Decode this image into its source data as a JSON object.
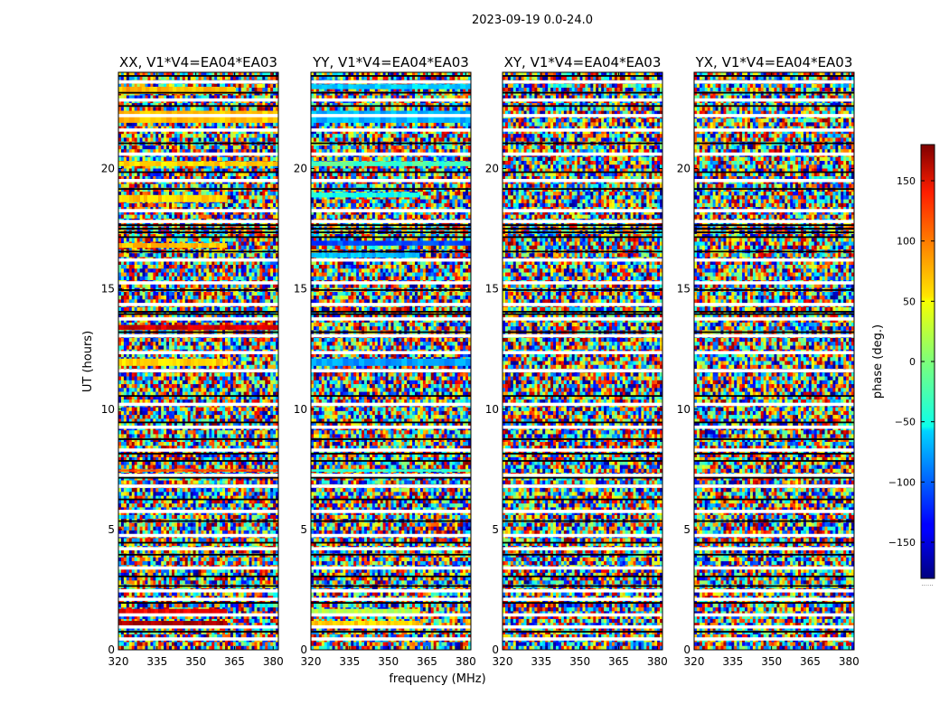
{
  "figure": {
    "suptitle": "2023-09-19 0.0-24.0",
    "xlabel": "frequency (MHz)",
    "ylabel": "UT (hours)",
    "colorbar_label": "phase (deg.)",
    "colorbar_dots": "......"
  },
  "chart_data": {
    "type": "heatmap",
    "title": "2023-09-19 0.0-24.0",
    "xlabel": "frequency (MHz)",
    "ylabel": "UT (hours)",
    "xlim": [
      320,
      382
    ],
    "ylim": [
      0,
      24
    ],
    "x_ticks": [
      320,
      335,
      350,
      365,
      380
    ],
    "y_ticks": [
      0,
      5,
      10,
      15,
      20
    ],
    "colormap": "jet",
    "colorbar": {
      "label": "phase (deg.)",
      "range": [
        -180,
        180
      ],
      "ticks": [
        -150,
        -100,
        -50,
        0,
        50,
        100,
        150
      ]
    },
    "panels": [
      {
        "title": "XX, V1*V4=EA04*EA03",
        "noise_level": 0.8,
        "coherent_bands": [
          {
            "t0": 23.1,
            "t1": 23.4,
            "phase": 70,
            "f_end": 365
          },
          {
            "t0": 21.9,
            "t1": 22.4,
            "phase": 65,
            "f_end": 382
          },
          {
            "t0": 20.1,
            "t1": 20.3,
            "phase": 60,
            "f_end": 382
          },
          {
            "t0": 18.6,
            "t1": 18.9,
            "phase": 62,
            "f_end": 362
          },
          {
            "t0": 16.7,
            "t1": 16.9,
            "phase": 70,
            "f_end": 362
          },
          {
            "t0": 13.3,
            "t1": 13.5,
            "phase": 150,
            "f_end": 382
          },
          {
            "t0": 11.8,
            "t1": 12.1,
            "phase": 60,
            "f_end": 362
          },
          {
            "t0": 7.4,
            "t1": 7.5,
            "phase": 110,
            "f_end": 382
          },
          {
            "t0": 1.5,
            "t1": 1.7,
            "phase": 140,
            "f_end": 362
          },
          {
            "t0": 1.0,
            "t1": 1.2,
            "phase": 165,
            "f_end": 362
          }
        ]
      },
      {
        "title": "YY, V1*V4=EA04*EA03",
        "noise_level": 0.8,
        "coherent_bands": [
          {
            "t0": 23.3,
            "t1": 23.5,
            "phase": -60,
            "f_end": 382
          },
          {
            "t0": 21.9,
            "t1": 22.4,
            "phase": -70,
            "f_end": 382
          },
          {
            "t0": 20.1,
            "t1": 20.3,
            "phase": -20,
            "f_end": 382
          },
          {
            "t0": 18.8,
            "t1": 19.0,
            "phase": -40,
            "f_end": 362
          },
          {
            "t0": 16.8,
            "t1": 17.0,
            "phase": -110,
            "f_end": 382
          },
          {
            "t0": 16.3,
            "t1": 16.5,
            "phase": -70,
            "f_end": 362
          },
          {
            "t0": 11.8,
            "t1": 12.1,
            "phase": -80,
            "f_end": 382
          },
          {
            "t0": 7.4,
            "t1": 7.5,
            "phase": -30,
            "f_end": 382
          },
          {
            "t0": 1.5,
            "t1": 1.7,
            "phase": 20,
            "f_end": 362
          },
          {
            "t0": 1.0,
            "t1": 1.2,
            "phase": 60,
            "f_end": 362
          }
        ]
      },
      {
        "title": "XY, V1*V4=EA04*EA03",
        "noise_level": 1.0,
        "coherent_bands": []
      },
      {
        "title": "YX, V1*V4=EA04*EA03",
        "noise_level": 1.0,
        "coherent_bands": []
      }
    ],
    "flagged_rows_white": [
      0.45,
      0.95,
      1.45,
      2.1,
      2.45,
      3.4,
      4.2,
      4.75,
      5.75,
      6.8,
      7.25,
      8.3,
      9.25,
      10.2,
      11.6,
      12.35,
      13.05,
      13.75,
      14.35,
      15.25,
      16.2,
      17.8,
      18.25,
      19.5,
      20.6,
      21.6,
      22.2,
      22.85,
      23.6
    ],
    "black_rows": [
      0.75,
      1.95,
      2.65,
      3.05,
      3.95,
      4.45,
      5.35,
      6.25,
      7.15,
      7.85,
      8.15,
      8.75,
      9.45,
      10.55,
      13.2,
      13.95,
      14.05,
      14.95,
      16.55,
      17.15,
      17.35,
      17.5,
      17.65,
      19.15,
      19.85,
      21.05,
      22.6,
      23.15,
      23.85
    ]
  }
}
